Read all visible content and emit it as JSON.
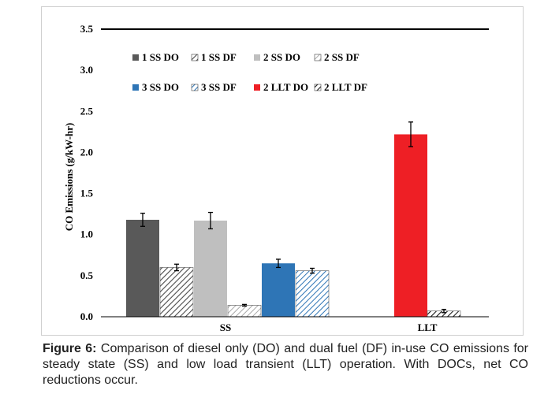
{
  "chart_data": {
    "type": "bar",
    "title": "",
    "xlabel": "",
    "ylabel": "CO Emissions (g/kW-hr)",
    "ylim": [
      0.0,
      3.5
    ],
    "yticks": [
      "0.0",
      "0.5",
      "1.0",
      "1.5",
      "2.0",
      "2.5",
      "3.0",
      "3.5"
    ],
    "grid": false,
    "legend_position": "top",
    "categories": [
      "SS",
      "LLT"
    ],
    "series": [
      {
        "name": "1 SS DO",
        "category": "SS",
        "value": 1.18,
        "error": 0.08,
        "color": "#595959",
        "pattern": "solid"
      },
      {
        "name": "1 SS DF",
        "category": "SS",
        "value": 0.6,
        "error": 0.04,
        "color": "#595959",
        "pattern": "hatch"
      },
      {
        "name": "2 SS DO",
        "category": "SS",
        "value": 1.17,
        "error": 0.1,
        "color": "#bfbfbf",
        "pattern": "solid"
      },
      {
        "name": "2 SS DF",
        "category": "SS",
        "value": 0.14,
        "error": 0.01,
        "color": "#9e9e9e",
        "pattern": "hatch"
      },
      {
        "name": "3 SS DO",
        "category": "SS",
        "value": 0.65,
        "error": 0.05,
        "color": "#2e75b6",
        "pattern": "solid"
      },
      {
        "name": "3 SS DF",
        "category": "SS",
        "value": 0.56,
        "error": 0.03,
        "color": "#2e75b6",
        "pattern": "hatch"
      },
      {
        "name": "2 LLT DO",
        "category": "LLT",
        "value": 2.22,
        "error": 0.15,
        "color": "#ee1f25",
        "pattern": "solid"
      },
      {
        "name": "2 LLT DF",
        "category": "LLT",
        "value": 0.07,
        "error": 0.02,
        "color": "#000000",
        "pattern": "hatch"
      }
    ]
  },
  "caption": {
    "label": "Figure 6:",
    "text": " Comparison of diesel only (DO) and dual fuel (DF) in-use CO emissions for steady state (SS) and low load transient (LLT) operation. With DOCs, net CO reductions occur."
  }
}
